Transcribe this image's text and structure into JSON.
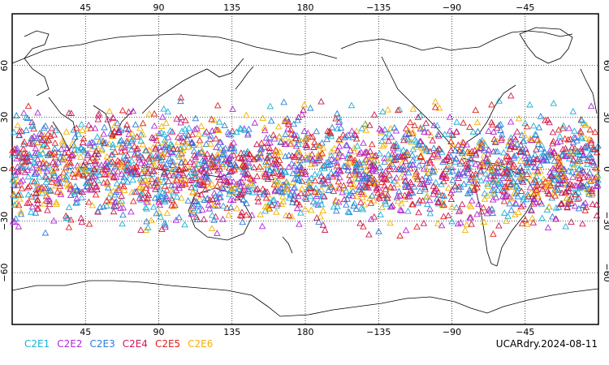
{
  "map": {
    "projection": "cylindrical-equidistant",
    "lon_start": 0,
    "lon_end": 360,
    "lat_min": -90,
    "lat_max": 90,
    "top_lon_labels": [
      "45",
      "90",
      "135",
      "180",
      "−135",
      "−90",
      "−45"
    ],
    "bottom_lon_labels": [
      "45",
      "90",
      "135",
      "180",
      "−135",
      "−90",
      "−45"
    ],
    "lat_labels": [
      "60",
      "30",
      "0",
      "−30",
      "−60"
    ],
    "gridlines": "dotted",
    "marker": "triangle-outline",
    "observation_band_lat": [
      -45,
      45
    ]
  },
  "legend": {
    "items": [
      {
        "label": "C2E1",
        "color": "#1ab0d8"
      },
      {
        "label": "C2E2",
        "color": "#b02ad8"
      },
      {
        "label": "C2E3",
        "color": "#2a7ed8"
      },
      {
        "label": "C2E4",
        "color": "#c8195a"
      },
      {
        "label": "C2E5",
        "color": "#e0201e"
      },
      {
        "label": "C2E6",
        "color": "#f2b200"
      }
    ]
  },
  "stamp": {
    "text": "UCARdry.2024-08-11"
  }
}
